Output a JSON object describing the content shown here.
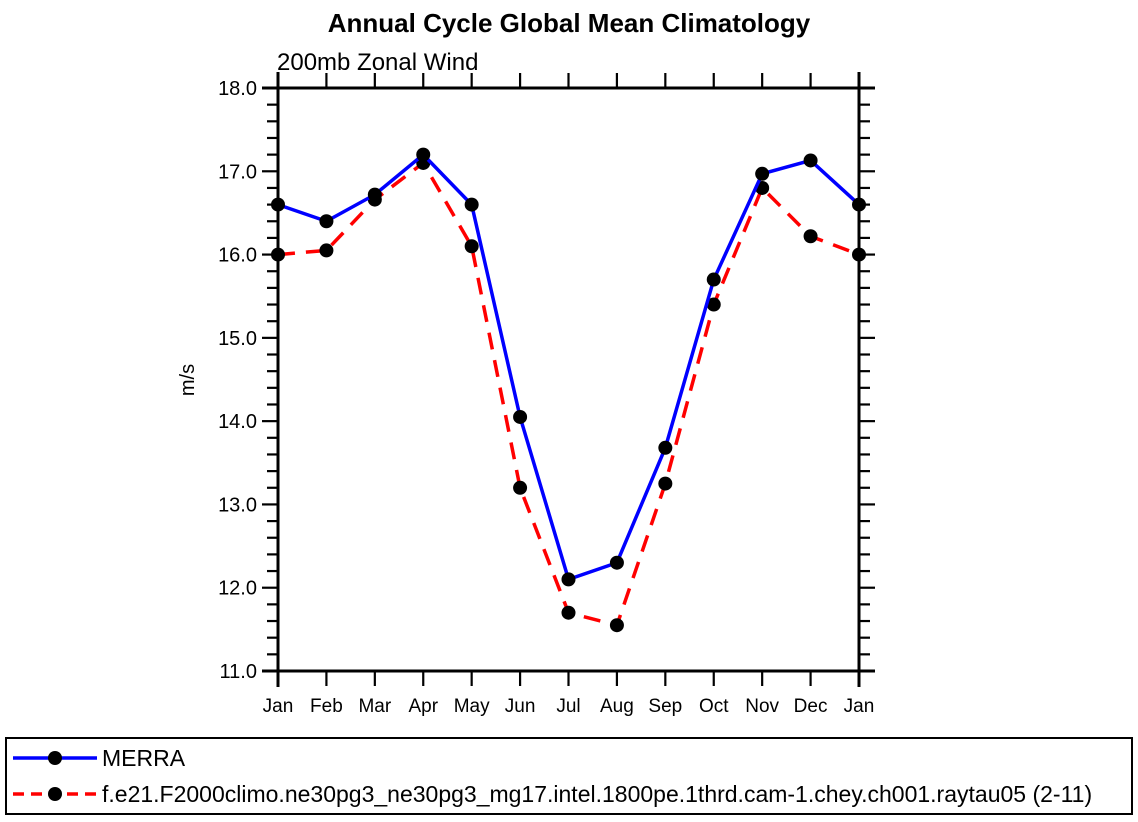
{
  "page": {
    "background": "#FFFFFF"
  },
  "chart_data": {
    "type": "line",
    "title": "Annual Cycle Global Mean Climatology",
    "subtitle": "200mb Zonal Wind",
    "xlabel": "",
    "ylabel": "m/s",
    "ylim": [
      11.0,
      18.0
    ],
    "ytick_step": 1.0,
    "yminor_step": 0.2,
    "ytick_labels": [
      "11.0",
      "12.0",
      "13.0",
      "14.0",
      "15.0",
      "16.0",
      "17.0",
      "18.0"
    ],
    "categories": [
      "Jan",
      "Feb",
      "Mar",
      "Apr",
      "May",
      "Jun",
      "Jul",
      "Aug",
      "Sep",
      "Oct",
      "Nov",
      "Dec",
      "Jan"
    ],
    "grid": false,
    "frame_color": "#000000",
    "marker_color": "#000000",
    "legend_position": "bottom",
    "series": [
      {
        "name": "MERRA",
        "color": "#0000FF",
        "line_style": "solid",
        "marker": "circle",
        "values": [
          16.6,
          16.4,
          16.72,
          17.2,
          16.6,
          14.05,
          12.1,
          12.3,
          13.68,
          15.7,
          16.97,
          17.13,
          16.6
        ]
      },
      {
        "name": "f.e21.F2000climo.ne30pg3_ne30pg3_mg17.intel.1800pe.1thrd.cam-1.chey.ch001.raytau05 (2-11)",
        "color": "#FF0000",
        "line_style": "dashed",
        "marker": "circle",
        "values": [
          16.0,
          16.05,
          16.66,
          17.1,
          16.1,
          13.2,
          11.7,
          11.55,
          13.25,
          15.4,
          16.8,
          16.22,
          16.0
        ]
      }
    ]
  }
}
